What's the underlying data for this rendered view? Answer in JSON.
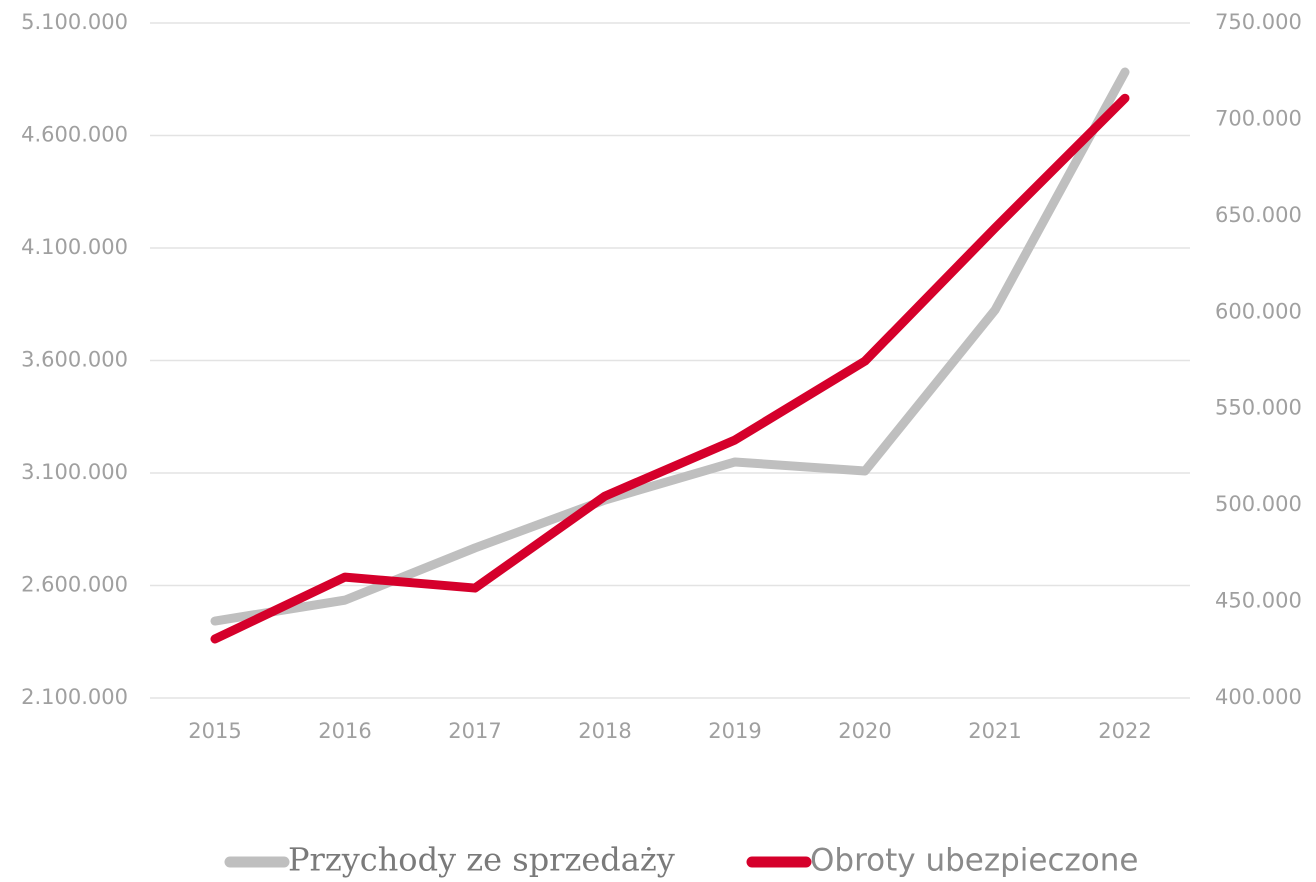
{
  "chart_data": {
    "type": "line",
    "categories": [
      "2015",
      "2016",
      "2017",
      "2018",
      "2019",
      "2020",
      "2021",
      "2022"
    ],
    "series": [
      {
        "name": "Przychody ze sprzedaży",
        "color": "#bfbfbf",
        "values": [
          2442000,
          2535000,
          2767000,
          2980000,
          3149000,
          3109000,
          3824000,
          4882000
        ]
      },
      {
        "name": "Obroty ubezpieczone",
        "color": "#d5002b",
        "axis": "y2",
        "values": [
          430600,
          462700,
          457000,
          504700,
          533800,
          574700,
          643700,
          711000
        ]
      }
    ],
    "ylim": [
      2100000,
      5100000
    ],
    "yticks": [
      {
        "value": 2100000,
        "label": "2.100.000"
      },
      {
        "value": 2600000,
        "label": "2.600.000"
      },
      {
        "value": 3100000,
        "label": "3.100.000"
      },
      {
        "value": 3600000,
        "label": "3.600.000"
      },
      {
        "value": 4100000,
        "label": "4.100.000"
      },
      {
        "value": 4600000,
        "label": "4.600.000"
      },
      {
        "value": 5100000,
        "label": "5.100.000"
      }
    ],
    "y2lim": [
      400000,
      750000
    ],
    "y2ticks": [
      {
        "value": 400000,
        "label": "400.000"
      },
      {
        "value": 450000,
        "label": "450.000"
      },
      {
        "value": 500000,
        "label": "500.000"
      },
      {
        "value": 550000,
        "label": "550.000"
      },
      {
        "value": 600000,
        "label": "600.000"
      },
      {
        "value": 650000,
        "label": "650.000"
      },
      {
        "value": 700000,
        "label": "700.000"
      },
      {
        "value": 750000,
        "label": "750.000"
      }
    ],
    "grid": true,
    "legend": "bottom"
  }
}
